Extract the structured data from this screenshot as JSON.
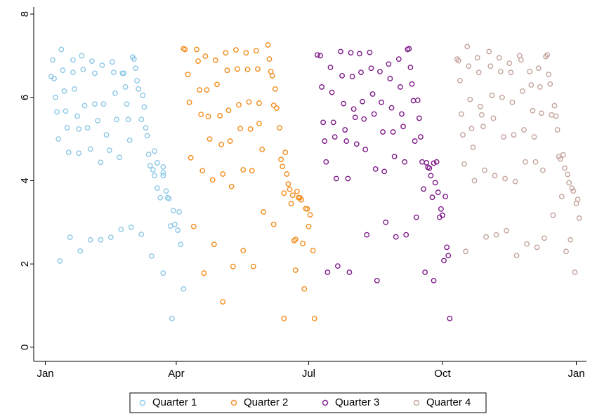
{
  "chart_data": {
    "type": "scatter",
    "xlim": [
      -8,
      372
    ],
    "ylim": [
      -0.34,
      8.17
    ],
    "xticks": [
      {
        "value": 0,
        "label": "Jan"
      },
      {
        "value": 90,
        "label": "Apr"
      },
      {
        "value": 181,
        "label": "Jul"
      },
      {
        "value": 273,
        "label": "Oct"
      },
      {
        "value": 365,
        "label": "Jan"
      }
    ],
    "yticks": [
      0,
      2,
      4,
      6,
      8
    ],
    "grid": false,
    "legend": "bottom",
    "series": [
      {
        "name": "Quarter 1",
        "color": "#8cc8e6",
        "x": [
          4,
          6,
          5,
          11,
          7,
          8,
          9,
          13,
          14,
          12,
          15,
          16,
          19,
          20,
          19,
          22,
          23,
          23,
          25,
          26,
          27,
          29,
          31,
          32,
          34,
          34,
          36,
          38,
          39,
          40,
          42,
          44,
          46,
          47,
          48,
          49,
          51,
          53,
          54,
          55,
          56,
          57,
          58,
          60,
          61,
          62,
          63,
          64,
          66,
          67,
          68,
          69,
          70,
          71,
          72,
          74,
          75,
          75,
          77,
          79,
          81,
          81,
          83,
          84,
          85,
          86,
          88,
          89,
          91,
          92,
          93,
          95,
          87,
          81,
          73,
          66,
          59,
          52,
          45,
          38,
          31,
          24,
          17,
          10,
          81,
          77
        ],
        "values": [
          6.5,
          6.45,
          6.9,
          7.15,
          6.0,
          5.65,
          5.0,
          6.15,
          5.67,
          6.65,
          5.27,
          4.68,
          6.9,
          6.2,
          6.6,
          5.55,
          5.24,
          4.66,
          7.0,
          6.67,
          5.8,
          5.27,
          4.76,
          6.87,
          6.58,
          5.84,
          5.44,
          4.44,
          6.77,
          5.84,
          5.1,
          4.73,
          6.85,
          6.6,
          6.1,
          5.47,
          4.56,
          6.58,
          6.58,
          6.25,
          5.84,
          5.47,
          4.97,
          6.97,
          6.92,
          6.7,
          6.4,
          6.2,
          5.47,
          6.05,
          5.77,
          5.27,
          5.08,
          4.63,
          4.36,
          4.26,
          4.71,
          4.12,
          3.82,
          3.59,
          4.12,
          4.33,
          3.75,
          3.59,
          3.57,
          2.91,
          3.28,
          2.95,
          2.81,
          3.25,
          2.47,
          1.4,
          0.69,
          1.78,
          2.19,
          2.71,
          2.88,
          2.83,
          2.64,
          2.58,
          2.58,
          2.31,
          2.64,
          2.07,
          4.19,
          4.43
        ]
      },
      {
        "name": "Quarter 2",
        "color": "#f28c1c",
        "x": [
          95,
          96,
          98,
          99,
          100,
          102,
          104,
          105,
          106,
          107,
          108,
          109,
          110,
          111,
          112,
          113,
          115,
          116,
          117,
          118,
          120,
          121,
          122,
          122,
          124,
          125,
          126,
          127,
          128,
          129,
          131,
          132,
          133,
          134,
          136,
          136,
          138,
          139,
          140,
          141,
          142,
          143,
          145,
          146,
          147,
          147,
          149,
          150,
          153,
          154,
          155,
          156,
          157,
          158,
          159,
          161,
          157,
          162,
          163,
          164,
          165,
          166,
          167,
          168,
          169,
          170,
          171,
          172,
          173,
          174,
          175,
          176,
          177,
          178,
          179,
          180,
          181,
          182,
          184,
          185,
          164,
          172
        ],
        "values": [
          7.17,
          7.15,
          6.55,
          5.88,
          4.55,
          2.9,
          7.15,
          6.87,
          6.18,
          5.59,
          4.24,
          1.78,
          6.99,
          6.18,
          5.54,
          5.0,
          4.02,
          2.47,
          6.89,
          6.31,
          5.56,
          4.87,
          4.16,
          1.09,
          7.07,
          6.65,
          5.69,
          4.95,
          3.86,
          1.94,
          7.14,
          6.68,
          5.82,
          5.25,
          4.26,
          2.32,
          7.07,
          6.67,
          5.89,
          5.24,
          4.24,
          1.94,
          7.12,
          6.68,
          5.86,
          5.37,
          4.75,
          3.25,
          7.26,
          6.92,
          6.62,
          6.52,
          5.81,
          6.2,
          5.74,
          5.27,
          2.95,
          4.51,
          4.34,
          3.7,
          4.68,
          4.16,
          3.92,
          3.79,
          3.45,
          3.65,
          2.56,
          1.85,
          3.74,
          3.59,
          3.59,
          3.54,
          2.49,
          1.4,
          3.33,
          3.32,
          2.9,
          3.18,
          2.32,
          0.69,
          0.69,
          2.59
        ]
      },
      {
        "name": "Quarter 3",
        "color": "#7e1a8a",
        "x": [
          187,
          189,
          190,
          191,
          192,
          193,
          194,
          196,
          197,
          198,
          199,
          200,
          201,
          203,
          204,
          205,
          206,
          207,
          208,
          209,
          210,
          211,
          212,
          213,
          214,
          216,
          217,
          218,
          219,
          220,
          221,
          223,
          224,
          225,
          226,
          227,
          228,
          230,
          231,
          232,
          233,
          234,
          236,
          237,
          238,
          239,
          240,
          241,
          243,
          244,
          245,
          246,
          247,
          248,
          249,
          250,
          251,
          252,
          253,
          254,
          255,
          256,
          257,
          258,
          259,
          260,
          261,
          262,
          263,
          264,
          265,
          266,
          267,
          268,
          269,
          270,
          271,
          272,
          273,
          274,
          275,
          276,
          277,
          278,
          267
        ],
        "values": [
          7.02,
          7.0,
          6.25,
          5.4,
          4.95,
          4.45,
          1.8,
          6.72,
          6.12,
          5.4,
          5.05,
          4.05,
          1.95,
          7.1,
          6.52,
          5.85,
          5.22,
          4.95,
          4.05,
          1.8,
          7.07,
          6.5,
          5.72,
          5.52,
          4.88,
          7.05,
          6.6,
          5.9,
          5.48,
          4.75,
          2.7,
          7.08,
          6.7,
          6.08,
          5.6,
          4.28,
          1.6,
          6.62,
          5.88,
          5.17,
          4.22,
          3.0,
          6.8,
          6.45,
          5.75,
          5.17,
          4.58,
          2.65,
          6.92,
          6.25,
          5.6,
          5.3,
          4.45,
          2.7,
          7.15,
          7.17,
          6.72,
          6.32,
          5.92,
          4.95,
          3.12,
          5.93,
          5.5,
          5.05,
          4.45,
          3.8,
          1.8,
          4.43,
          4.32,
          4.3,
          4.12,
          3.6,
          4.42,
          3.95,
          4.45,
          3.72,
          3.12,
          3.32,
          3.17,
          2.08,
          3.62,
          2.4,
          2.2,
          0.69,
          1.6
        ]
      },
      {
        "name": "Quarter 4",
        "color": "#c4a39b",
        "x": [
          283,
          284,
          285,
          286,
          287,
          288,
          289,
          290,
          291,
          292,
          293,
          294,
          295,
          297,
          298,
          299,
          300,
          301,
          302,
          303,
          305,
          306,
          307,
          308,
          309,
          310,
          312,
          313,
          314,
          315,
          316,
          317,
          319,
          320,
          321,
          322,
          323,
          324,
          326,
          327,
          328,
          329,
          330,
          331,
          333,
          334,
          335,
          336,
          337,
          338,
          339,
          340,
          341,
          342,
          343,
          344,
          345,
          346,
          347,
          348,
          349,
          350,
          351,
          352,
          353,
          354,
          355,
          356,
          357,
          358,
          359,
          360,
          361,
          362,
          363,
          364,
          365,
          366,
          367
        ],
        "values": [
          6.92,
          6.88,
          6.4,
          5.6,
          5.1,
          4.4,
          2.3,
          7.22,
          6.75,
          5.95,
          5.25,
          4.8,
          4.0,
          6.95,
          6.6,
          5.78,
          5.58,
          5.3,
          4.25,
          2.65,
          7.1,
          6.75,
          6.05,
          5.5,
          4.12,
          2.7,
          6.95,
          6.62,
          6.0,
          5.05,
          4.05,
          2.8,
          6.82,
          6.6,
          5.88,
          5.1,
          3.98,
          2.2,
          7.0,
          6.9,
          6.15,
          5.22,
          4.45,
          2.48,
          6.62,
          6.3,
          5.68,
          5.05,
          4.45,
          2.4,
          6.7,
          6.25,
          5.62,
          4.25,
          2.62,
          6.98,
          7.02,
          6.55,
          6.32,
          5.58,
          3.17,
          5.8,
          5.55,
          5.22,
          4.58,
          4.52,
          3.62,
          4.62,
          4.3,
          2.3,
          4.15,
          3.95,
          2.58,
          3.82,
          3.75,
          1.8,
          3.45,
          3.55,
          3.1
        ]
      }
    ]
  }
}
